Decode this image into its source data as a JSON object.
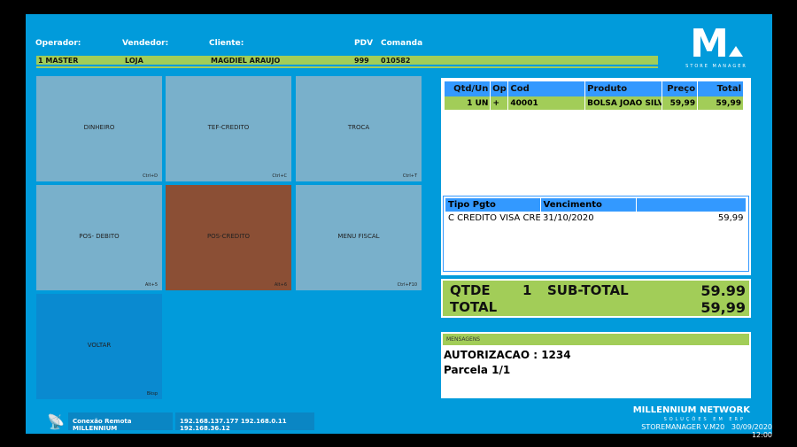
{
  "header": {
    "operador_label": "Operador:",
    "vendedor_label": "Vendedor:",
    "cliente_label": "Cliente:",
    "pdv_label": "PDV",
    "comanda_label": "Comanda",
    "operador": "1 MASTER",
    "vendedor": "LOJA",
    "cliente": "MAGDIEL ARAUJO",
    "pdv": "999",
    "comanda": "010582"
  },
  "logo": {
    "letter": "M",
    "subtitle": "STORE MANAGER"
  },
  "buttons": [
    {
      "label": "DINHEIRO",
      "shortcut": "Ctrl+D"
    },
    {
      "label": "TEF-CREDITO",
      "shortcut": "Ctrl+C"
    },
    {
      "label": "TROCA",
      "shortcut": "Ctrl+T"
    },
    {
      "label": "POS- DEBITO",
      "shortcut": "Alt+5"
    },
    {
      "label": "POS-CREDITO",
      "shortcut": "Alt+6"
    },
    {
      "label": "MENU FISCAL",
      "shortcut": "Ctrl+F10"
    },
    {
      "label": "VOLTAR",
      "shortcut": "Bksp"
    }
  ],
  "colors": {
    "background": "#019bdb",
    "accent": "#a2cd58",
    "button": "#79b0cb",
    "selected": "#8b4f35",
    "voltar": "#0a8ad0",
    "table_header": "#3399ff"
  },
  "items": {
    "columns": [
      "Qtd/Un",
      "Op",
      "Cod",
      "Produto",
      "Preço",
      "Total"
    ],
    "rows": [
      [
        "1 UN",
        "+",
        "40001",
        "BOLSA JOAO SILV",
        "59,99",
        "59,99"
      ]
    ]
  },
  "payments": {
    "columns": [
      "Tipo Pgto",
      "Vencimento",
      ""
    ],
    "rows": [
      [
        "C CREDITO VISA CRE",
        "31/10/2020",
        "59,99"
      ]
    ]
  },
  "totals": {
    "qtde_label": "QTDE",
    "qtde": "1",
    "subtotal_label": "SUB-TOTAL",
    "subtotal": "59.99",
    "total_label": "TOTAL",
    "total": "59,99"
  },
  "messages": {
    "title": "MENSAGENS",
    "lines": [
      "AUTORIZACAO : 1234",
      "Parcela 1/1"
    ]
  },
  "footer": {
    "remote": "Conexão Remota MILLENNIUM",
    "ips": "192.168.137.177 192.168.0.11 192.168.36.12",
    "brand": "MILLENNIUM NETWORK",
    "tagline": "SOLUÇÕES EM ERP",
    "version": "STOREMANAGER V.M20",
    "datetime": "30/09/2020 12:00"
  }
}
